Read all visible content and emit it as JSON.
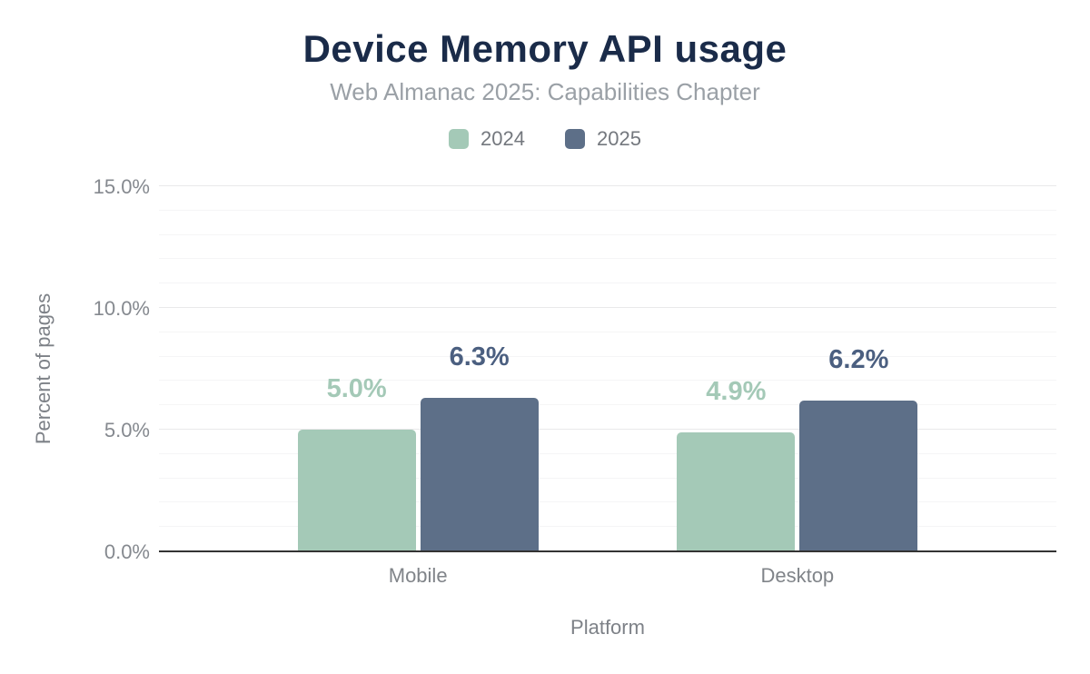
{
  "header": {
    "title": "Device Memory API usage",
    "subtitle": "Web Almanac 2025: Capabilities Chapter"
  },
  "legend": {
    "items": [
      {
        "label": "2024",
        "color": "#a4c9b7"
      },
      {
        "label": "2025",
        "color": "#5d6f88"
      }
    ]
  },
  "chart_data": {
    "type": "bar",
    "title": "Device Memory API usage",
    "subtitle": "Web Almanac 2025: Capabilities Chapter",
    "categories": [
      "Mobile",
      "Desktop"
    ],
    "series": [
      {
        "name": "2024",
        "color": "#a4c9b7",
        "label_color": "#a4c9b7",
        "values": [
          5.0,
          4.9
        ],
        "value_labels": [
          "5.0%",
          "4.9%"
        ]
      },
      {
        "name": "2025",
        "color": "#5d6f88",
        "label_color": "#4b5f80",
        "values": [
          6.3,
          6.2
        ],
        "value_labels": [
          "6.3%",
          "6.2%"
        ]
      }
    ],
    "xlabel": "Platform",
    "ylabel": "Percent of pages",
    "ylim": [
      0,
      15
    ],
    "yticks": [
      {
        "value": 0,
        "label": "0.0%"
      },
      {
        "value": 5,
        "label": "5.0%"
      },
      {
        "value": 10,
        "label": "10.0%"
      },
      {
        "value": 15,
        "label": "15.0%"
      }
    ],
    "minor_grid_step": 1,
    "major_grid_step": 5,
    "grid": true,
    "legend_position": "top"
  },
  "colors": {
    "title": "#1a2b49",
    "subtitle": "#9aa0a6",
    "axis_text": "#85898f",
    "axis_line": "#333333",
    "major_grid": "#e9e9ea",
    "minor_grid": "#f5f5f6"
  }
}
